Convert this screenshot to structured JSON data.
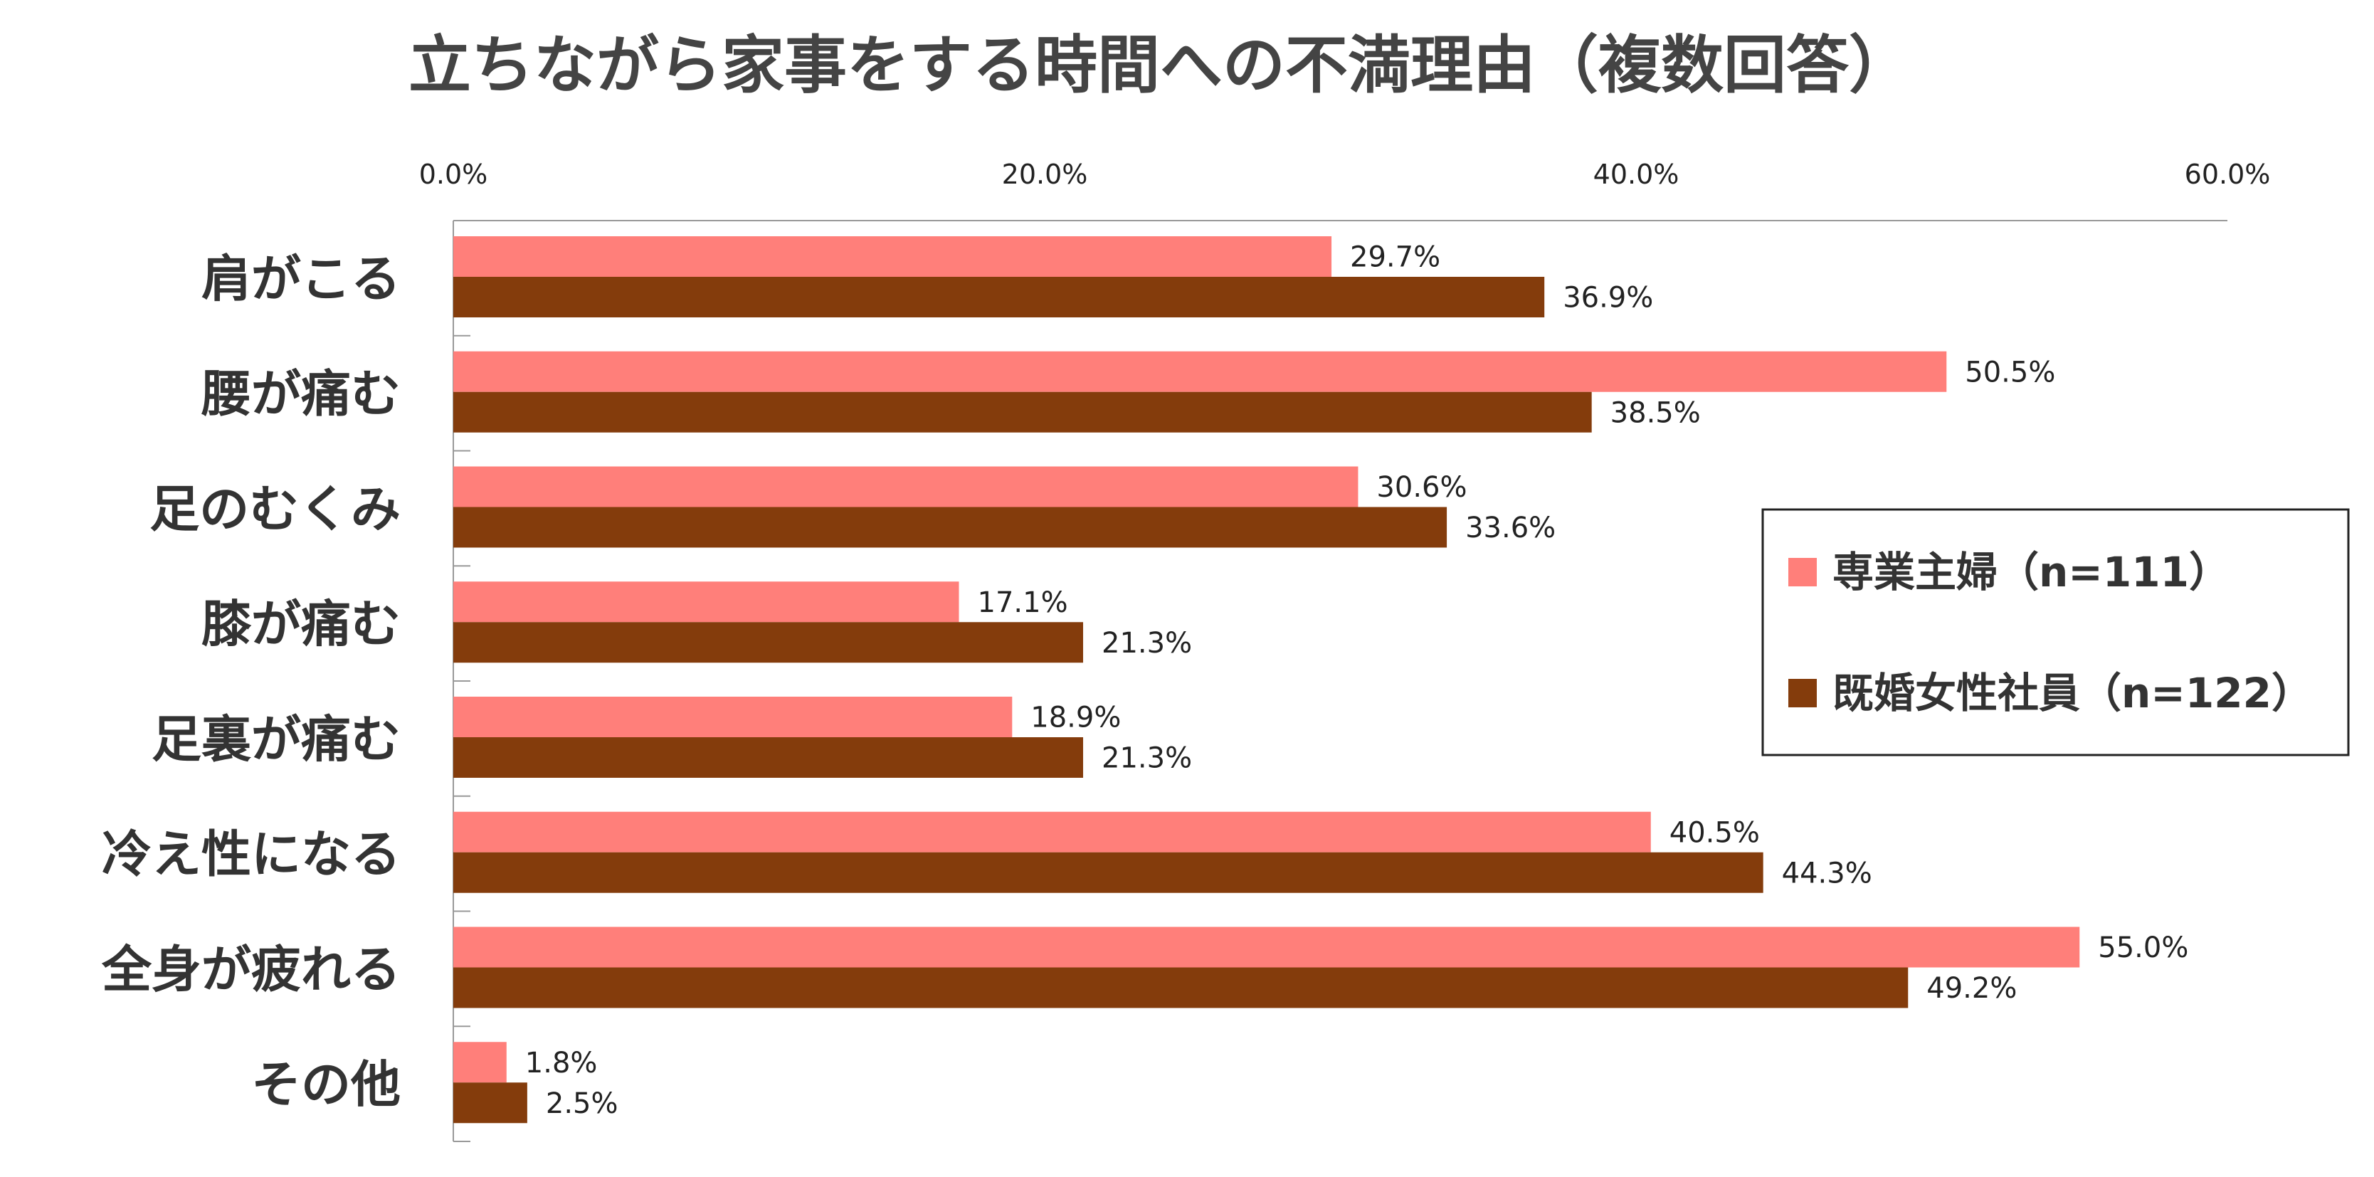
{
  "chart_data": {
    "type": "bar",
    "orientation": "horizontal",
    "title": "立ちながら家事をする時間への不満理由（複数回答）",
    "categories": [
      "肩がこる",
      "腰が痛む",
      "足のむくみ",
      "膝が痛む",
      "足裏が痛む",
      "冷え性になる",
      "全身が疲れる",
      "その他"
    ],
    "series": [
      {
        "name": "専業主婦（n=111）",
        "color": "#FF7F7A",
        "values": [
          29.7,
          50.5,
          30.6,
          17.1,
          18.9,
          40.5,
          55.0,
          1.8
        ]
      },
      {
        "name": "既婚女性社員（n=122）",
        "color": "#843C0C",
        "values": [
          36.9,
          38.5,
          33.6,
          21.3,
          21.3,
          44.3,
          49.2,
          2.5
        ]
      }
    ],
    "xlim": [
      0,
      60
    ],
    "x_ticks": [
      "0.0%",
      "20.0%",
      "40.0%",
      "60.0%"
    ],
    "data_labels": [
      [
        "29.7%",
        "50.5%",
        "30.6%",
        "17.1%",
        "18.9%",
        "40.5%",
        "55.0%",
        "1.8%"
      ],
      [
        "36.9%",
        "38.5%",
        "33.6%",
        "21.3%",
        "21.3%",
        "44.3%",
        "49.2%",
        "2.5%"
      ]
    ],
    "x_axis_position": "top",
    "gridlines": false,
    "legend_position": "right"
  }
}
